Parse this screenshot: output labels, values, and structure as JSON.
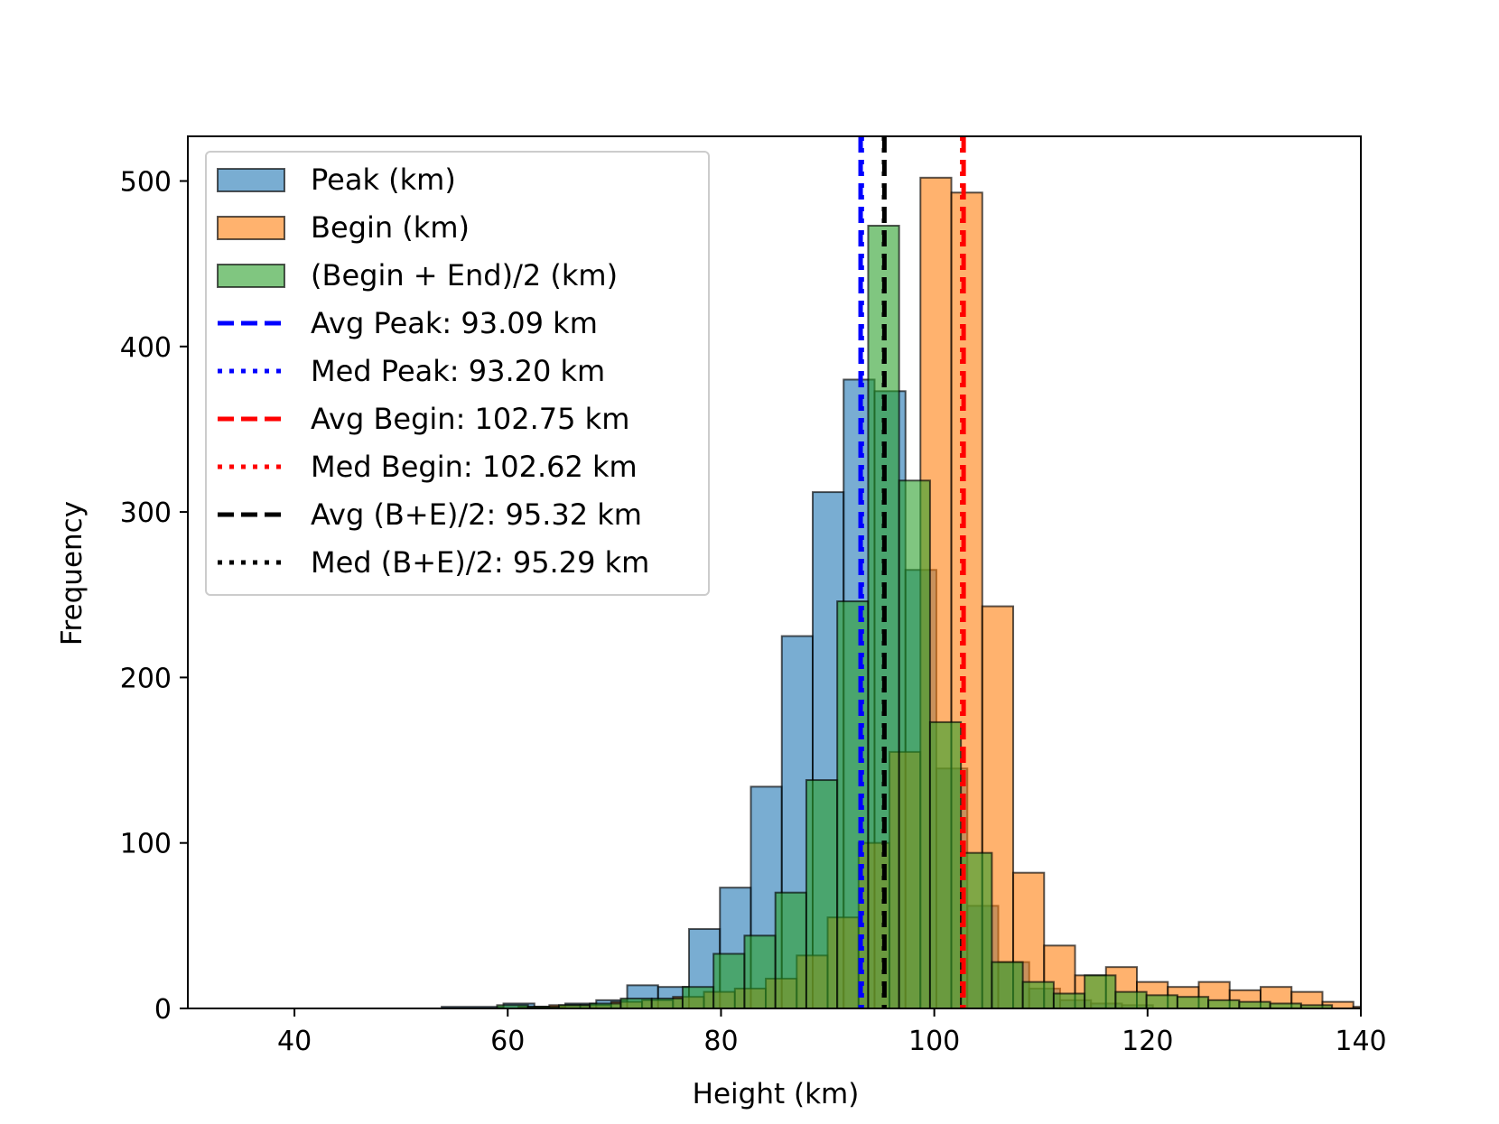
{
  "chart_data": {
    "type": "bar",
    "title": "",
    "xlabel": "Height (km)",
    "ylabel": "Frequency",
    "xlim": [
      30,
      140
    ],
    "ylim": [
      0,
      527
    ],
    "xticks": [
      40,
      60,
      80,
      100,
      120,
      140
    ],
    "yticks": [
      0,
      100,
      200,
      300,
      400,
      500
    ],
    "legend_location": "upper-left",
    "series": [
      {
        "name": "Peak (km)",
        "color": "#1f77b4",
        "opacity": 0.6,
        "bins": [
          [
            53.8,
            59.6,
            1
          ],
          [
            59.6,
            62.5,
            3
          ],
          [
            62.5,
            65.4,
            1
          ],
          [
            65.4,
            68.3,
            3
          ],
          [
            68.3,
            71.2,
            5
          ],
          [
            71.2,
            74.1,
            14
          ],
          [
            74.1,
            77.0,
            13
          ],
          [
            77.0,
            79.9,
            48
          ],
          [
            79.9,
            82.8,
            73
          ],
          [
            82.8,
            85.7,
            134
          ],
          [
            85.7,
            88.6,
            225
          ],
          [
            88.6,
            91.5,
            312
          ],
          [
            91.5,
            94.4,
            380
          ],
          [
            94.4,
            97.3,
            373
          ],
          [
            97.3,
            100.2,
            265
          ],
          [
            100.2,
            103.1,
            145
          ],
          [
            103.1,
            106.0,
            62
          ],
          [
            106.0,
            108.9,
            28
          ],
          [
            108.9,
            111.8,
            12
          ],
          [
            111.8,
            114.7,
            5
          ],
          [
            114.7,
            117.6,
            3
          ],
          [
            117.6,
            120.5,
            2
          ]
        ]
      },
      {
        "name": "Begin (km)",
        "color": "#ff7f0e",
        "opacity": 0.6,
        "bins": [
          [
            61.0,
            63.9,
            1
          ],
          [
            63.9,
            66.8,
            2
          ],
          [
            66.8,
            69.7,
            2
          ],
          [
            69.7,
            72.6,
            4
          ],
          [
            72.6,
            75.5,
            5
          ],
          [
            75.5,
            78.4,
            7
          ],
          [
            78.4,
            81.3,
            10
          ],
          [
            81.3,
            84.2,
            12
          ],
          [
            84.2,
            87.1,
            18
          ],
          [
            87.1,
            90.0,
            32
          ],
          [
            90.0,
            92.9,
            55
          ],
          [
            92.9,
            95.8,
            100
          ],
          [
            95.8,
            98.7,
            155
          ],
          [
            98.7,
            101.6,
            502
          ],
          [
            101.6,
            104.5,
            493
          ],
          [
            104.5,
            107.4,
            243
          ],
          [
            107.4,
            110.3,
            82
          ],
          [
            110.3,
            113.2,
            38
          ],
          [
            113.2,
            116.1,
            20
          ],
          [
            116.1,
            119.0,
            25
          ],
          [
            119.0,
            121.9,
            16
          ],
          [
            121.9,
            124.8,
            13
          ],
          [
            124.8,
            127.7,
            16
          ],
          [
            127.7,
            130.6,
            11
          ],
          [
            130.6,
            133.5,
            13
          ],
          [
            133.5,
            136.4,
            10
          ],
          [
            136.4,
            139.3,
            4
          ],
          [
            139.3,
            142.2,
            1
          ]
        ]
      },
      {
        "name": "(Begin + End)/2 (km)",
        "color": "#2ca02c",
        "opacity": 0.6,
        "bins": [
          [
            59.0,
            61.9,
            2
          ],
          [
            61.9,
            64.8,
            1
          ],
          [
            64.8,
            67.7,
            2
          ],
          [
            67.7,
            70.6,
            3
          ],
          [
            70.6,
            73.5,
            6
          ],
          [
            73.5,
            76.4,
            6
          ],
          [
            76.4,
            79.3,
            13
          ],
          [
            79.3,
            82.2,
            33
          ],
          [
            82.2,
            85.1,
            44
          ],
          [
            85.1,
            88.0,
            70
          ],
          [
            88.0,
            90.9,
            138
          ],
          [
            90.9,
            93.8,
            246
          ],
          [
            93.8,
            96.7,
            473
          ],
          [
            96.7,
            99.6,
            319
          ],
          [
            99.6,
            102.5,
            173
          ],
          [
            102.5,
            105.4,
            94
          ],
          [
            105.4,
            108.3,
            28
          ],
          [
            108.3,
            111.2,
            16
          ],
          [
            111.2,
            114.1,
            9
          ],
          [
            114.1,
            117.0,
            20
          ],
          [
            117.0,
            119.9,
            10
          ],
          [
            119.9,
            122.8,
            8
          ],
          [
            122.8,
            125.7,
            7
          ],
          [
            125.7,
            128.6,
            5
          ],
          [
            128.6,
            131.5,
            4
          ],
          [
            131.5,
            134.4,
            3
          ],
          [
            134.4,
            137.3,
            2
          ]
        ]
      }
    ],
    "reference_lines": [
      {
        "label": "Avg Peak: 93.09 km",
        "x": 93.09,
        "color": "#0000ff",
        "style": "dashed"
      },
      {
        "label": "Med Peak: 93.20 km",
        "x": 93.2,
        "color": "#0000ff",
        "style": "dotted"
      },
      {
        "label": "Avg Begin: 102.75 km",
        "x": 102.75,
        "color": "#ff0000",
        "style": "dashed"
      },
      {
        "label": "Med Begin: 102.62 km",
        "x": 102.62,
        "color": "#ff0000",
        "style": "dotted"
      },
      {
        "label": "Avg (B+E)/2: 95.32 km",
        "x": 95.32,
        "color": "#000000",
        "style": "dashed"
      },
      {
        "label": "Med (B+E)/2: 95.29 km",
        "x": 95.29,
        "color": "#000000",
        "style": "dotted"
      }
    ]
  }
}
